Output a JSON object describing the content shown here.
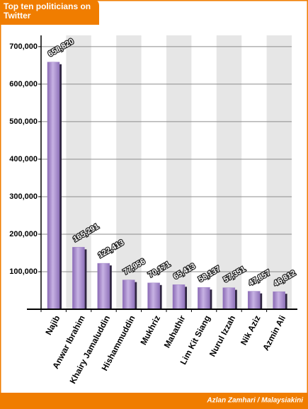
{
  "chart_data": {
    "type": "bar",
    "title": "Top ten politicians on Twitter",
    "source": "Azlan Zamhari / Malaysiakini",
    "categories": [
      "Najib",
      "Anwar Ibrahim",
      "Khairy Jamaluddin",
      "Hishammuddin",
      "Mukhriz",
      "Mahathir",
      "Lim Kit Siang",
      "Nurul Izzah",
      "Nik Aziz",
      "Azmin Ali"
    ],
    "values": [
      658820,
      165291,
      122413,
      77956,
      70171,
      65413,
      58137,
      57351,
      47857,
      46812
    ],
    "value_labels": [
      "658,820",
      "165,291",
      "122,413",
      "77,956",
      "70,171",
      "65,413",
      "58,137",
      "57,351",
      "47,857",
      "46,812"
    ],
    "color": "#9c7fc4",
    "ylim": [
      0,
      730000
    ],
    "yticks": [
      {
        "value": 100000,
        "label": "100,000"
      },
      {
        "value": 200000,
        "label": "200,000"
      },
      {
        "value": 300000,
        "label": "300,000"
      },
      {
        "value": 400000,
        "label": "400,000"
      },
      {
        "value": 500000,
        "label": "500,000"
      },
      {
        "value": 600000,
        "label": "600,000"
      },
      {
        "value": 700000,
        "label": "700,000"
      }
    ],
    "grid": true
  }
}
